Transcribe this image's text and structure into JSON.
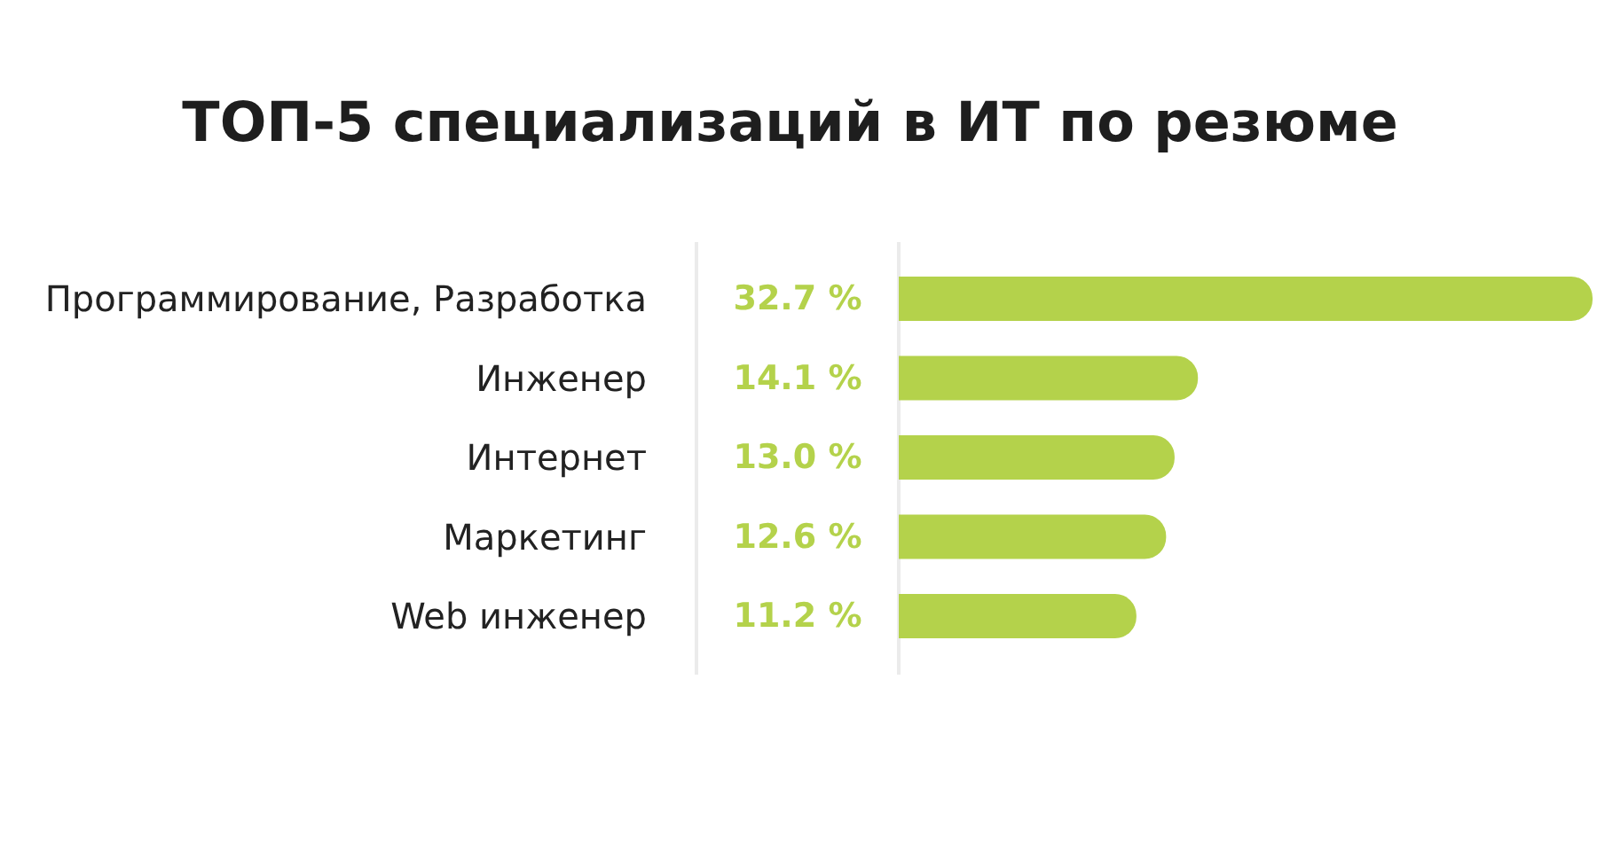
{
  "chart_data": {
    "type": "bar",
    "orientation": "horizontal",
    "title": "ТОП-5 специализаций в ИТ по резюме",
    "categories": [
      "Программирование, Разработка",
      "Инженер",
      "Интернет",
      "Маркетинг",
      "Web инженер"
    ],
    "values": [
      32.7,
      14.1,
      13.0,
      12.6,
      11.2
    ],
    "color": "#b4d24b",
    "value_labels": [
      "32.7 %",
      "14.1 %",
      "13.0 %",
      "12.6 %",
      "11.2 %"
    ],
    "ref_lines": [
      {
        "axis": "x",
        "value": 0,
        "color": "#ebebeb"
      }
    ]
  }
}
